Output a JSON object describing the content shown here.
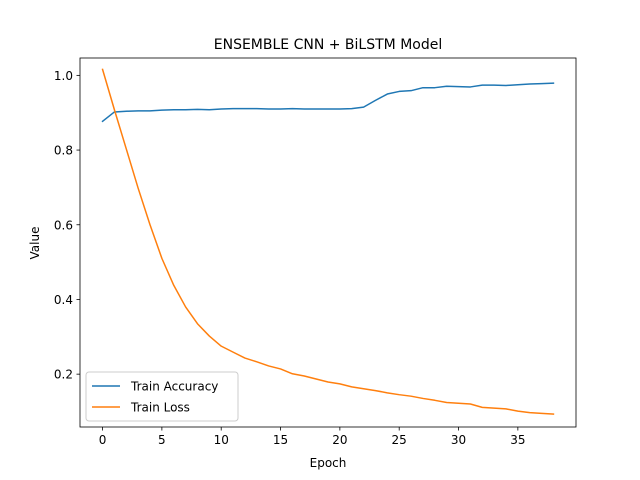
{
  "chart_data": {
    "type": "line",
    "title": "ENSEMBLE CNN + BiLSTM Model",
    "xlabel": "Epoch",
    "ylabel": "Value",
    "xlim": [
      -1.9,
      39.9
    ],
    "ylim": [
      0.0585,
      1.0465
    ],
    "xticks": [
      0,
      5,
      10,
      15,
      20,
      25,
      30,
      35
    ],
    "yticks": [
      0.2,
      0.4,
      0.6,
      0.8,
      1.0
    ],
    "ytick_labels": [
      "0.2",
      "0.4",
      "0.6",
      "0.8",
      "1.0"
    ],
    "grid": false,
    "legend_position": "lower-left",
    "x": [
      0,
      1,
      2,
      3,
      4,
      5,
      6,
      7,
      8,
      9,
      10,
      11,
      12,
      13,
      14,
      15,
      16,
      17,
      18,
      19,
      20,
      21,
      22,
      23,
      24,
      25,
      26,
      27,
      28,
      29,
      30,
      31,
      32,
      33,
      34,
      35,
      36,
      37,
      38
    ],
    "series": [
      {
        "name": "Train Accuracy",
        "color": "#1f77b4",
        "values": [
          0.877,
          0.902,
          0.904,
          0.905,
          0.905,
          0.907,
          0.908,
          0.908,
          0.909,
          0.908,
          0.91,
          0.911,
          0.911,
          0.911,
          0.91,
          0.91,
          0.911,
          0.91,
          0.91,
          0.91,
          0.91,
          0.911,
          0.915,
          0.933,
          0.95,
          0.957,
          0.959,
          0.967,
          0.967,
          0.971,
          0.97,
          0.969,
          0.974,
          0.974,
          0.973,
          0.975,
          0.977,
          0.978,
          0.979
        ]
      },
      {
        "name": "Train Loss",
        "color": "#ff7f0e",
        "values": [
          1.016,
          0.908,
          0.803,
          0.698,
          0.6,
          0.51,
          0.438,
          0.38,
          0.335,
          0.302,
          0.275,
          0.259,
          0.243,
          0.233,
          0.222,
          0.214,
          0.201,
          0.195,
          0.187,
          0.179,
          0.174,
          0.166,
          0.161,
          0.156,
          0.15,
          0.145,
          0.141,
          0.135,
          0.13,
          0.124,
          0.122,
          0.12,
          0.111,
          0.109,
          0.107,
          0.101,
          0.097,
          0.095,
          0.093
        ]
      }
    ]
  }
}
